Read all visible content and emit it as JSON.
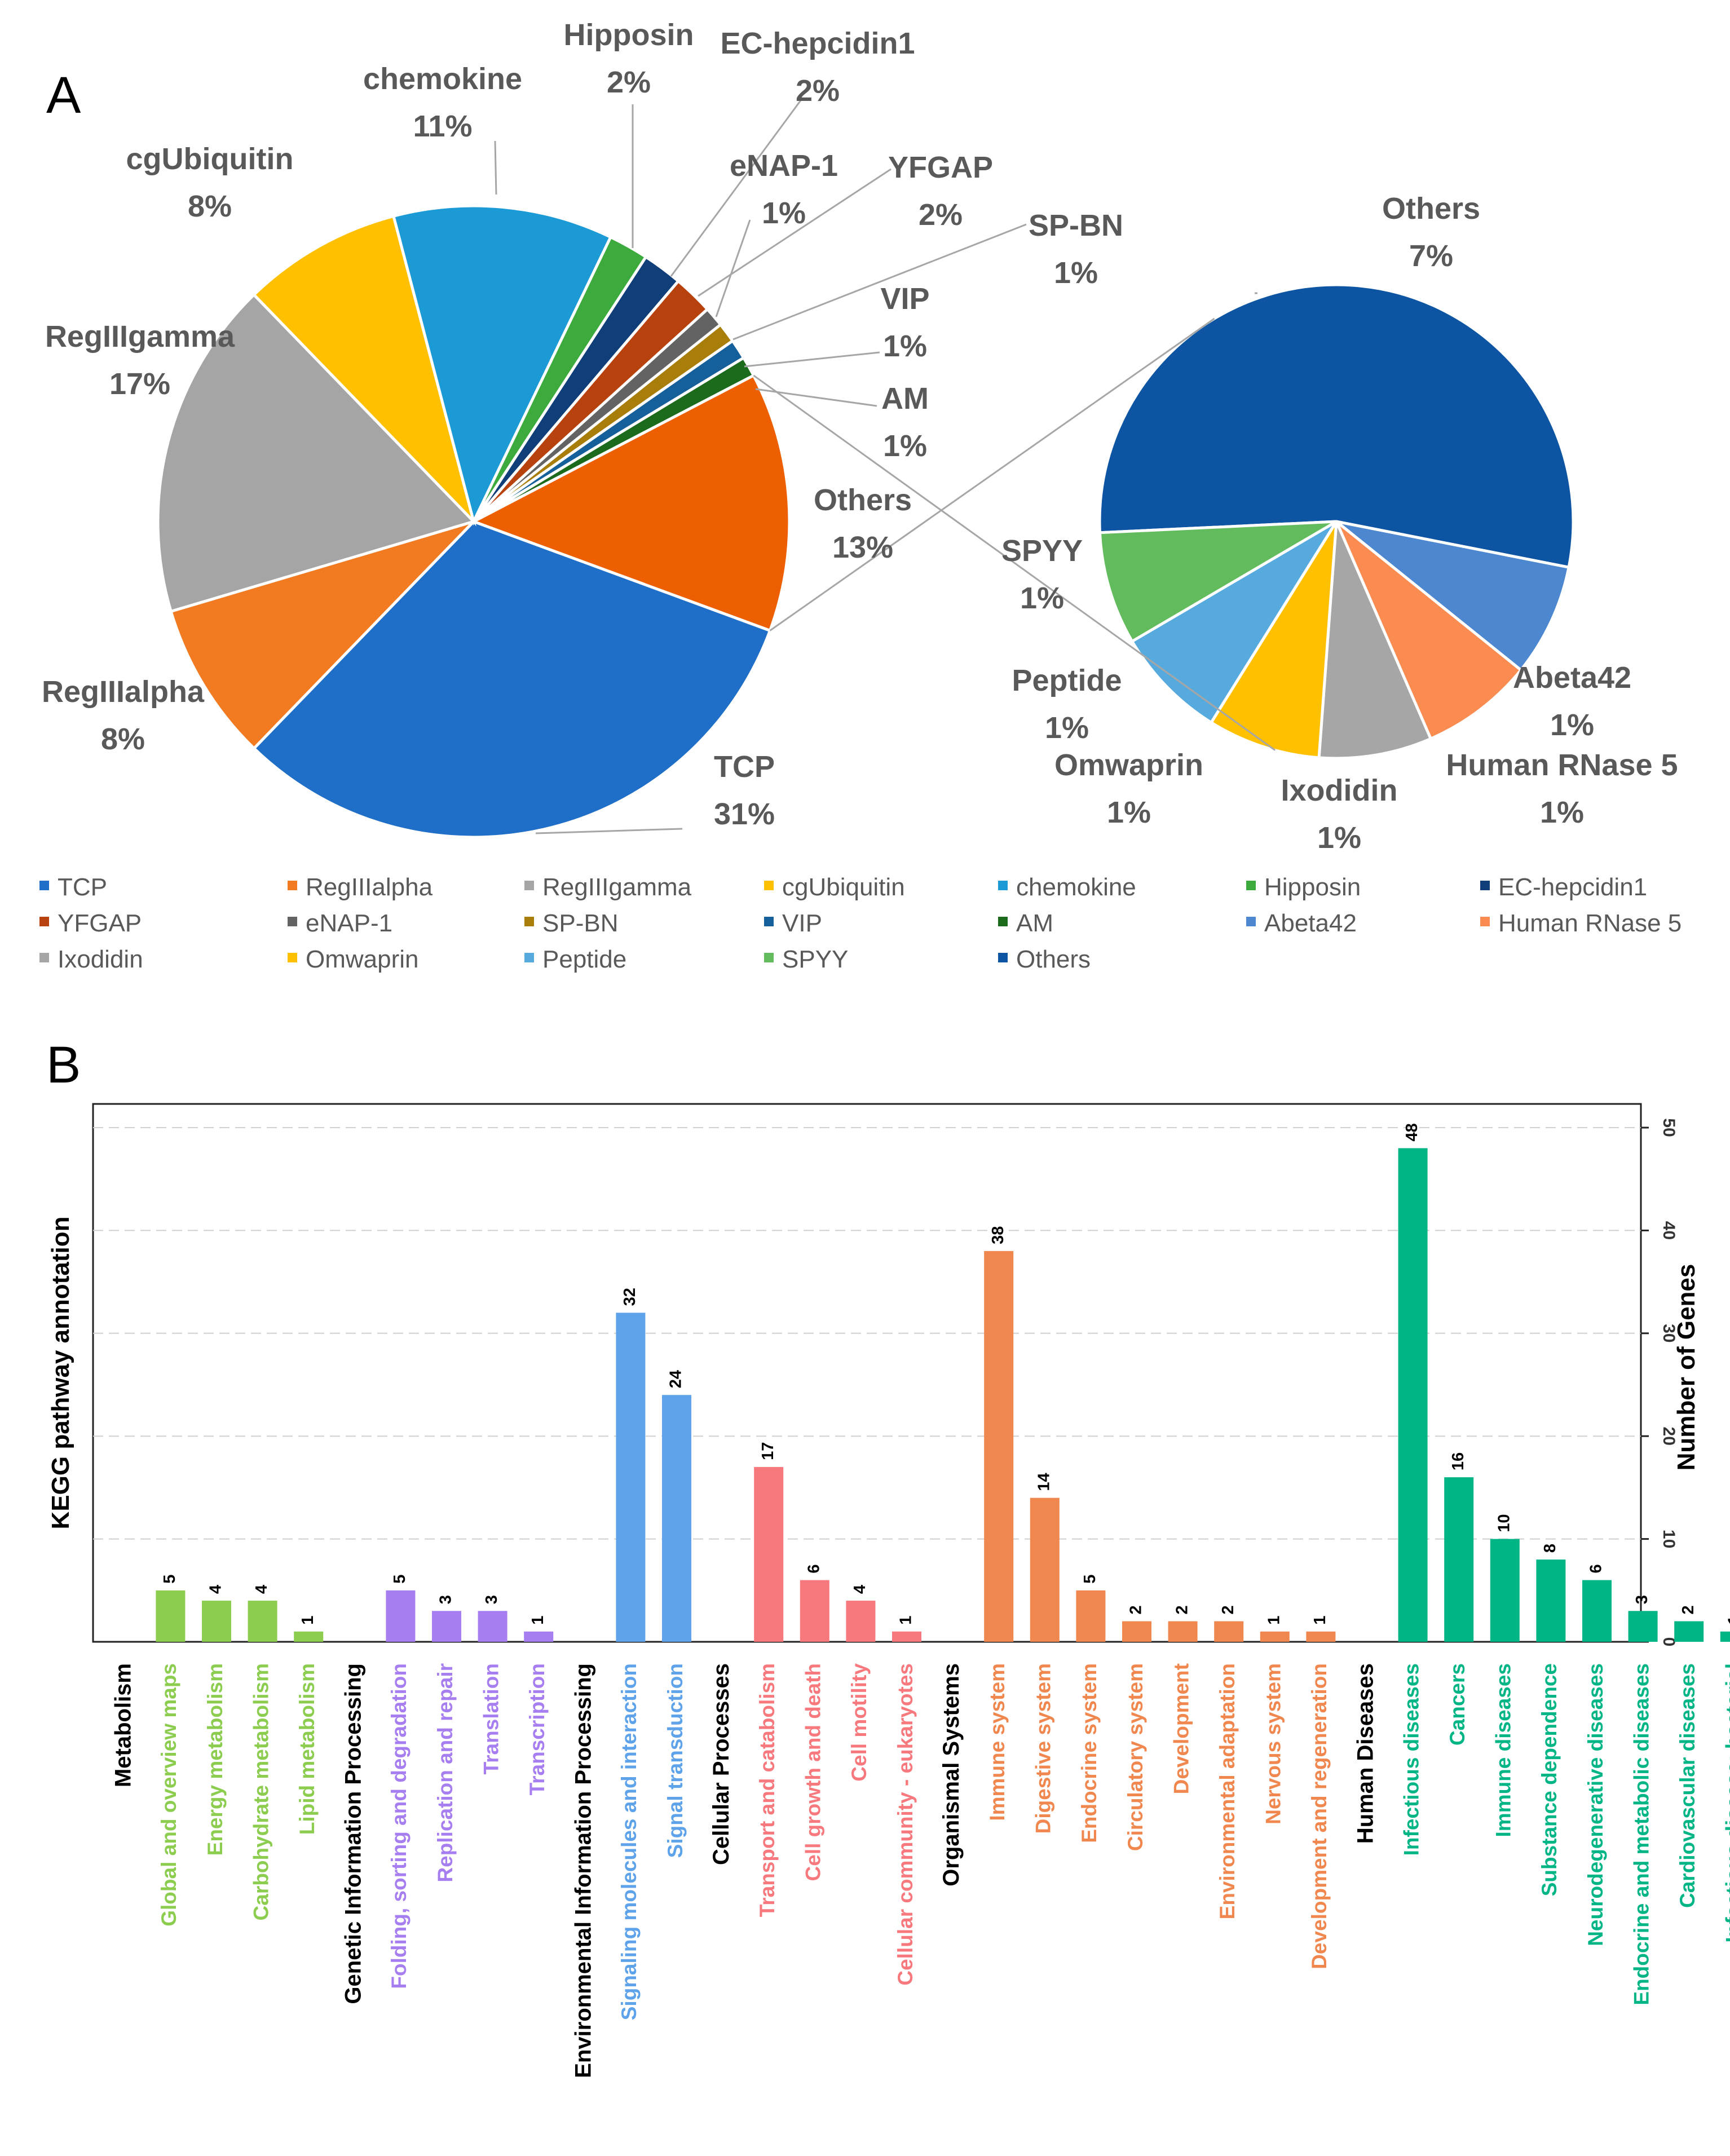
{
  "chart_data": [
    {
      "panel": "A",
      "type": "pie",
      "subtype": "pie-of-pie",
      "slices": [
        {
          "name": "TCP",
          "value": 31,
          "label": "31%",
          "color": "#1f6fc8"
        },
        {
          "name": "RegIIIalpha",
          "value": 8,
          "label": "8%",
          "color": "#f27a21"
        },
        {
          "name": "RegIIIgamma",
          "value": 17,
          "label": "17%",
          "color": "#a5a5a5"
        },
        {
          "name": "cgUbiquitin",
          "value": 8,
          "label": "8%",
          "color": "#ffc000"
        },
        {
          "name": "chemokine",
          "value": 11,
          "label": "11%",
          "color": "#1b9ad6"
        },
        {
          "name": "Hipposin",
          "value": 2,
          "label": "2%",
          "color": "#3daa3d"
        },
        {
          "name": "EC-hepcidin1",
          "value": 2,
          "label": "2%",
          "color": "#0f3e78"
        },
        {
          "name": "YFGAP",
          "value": 2,
          "label": "2%",
          "color": "#b8420e"
        },
        {
          "name": "eNAP-1",
          "value": 1,
          "label": "1%",
          "color": "#636363"
        },
        {
          "name": "SP-BN",
          "value": 1,
          "label": "1%",
          "color": "#a87d0a"
        },
        {
          "name": "VIP",
          "value": 1,
          "label": "1%",
          "color": "#15609a"
        },
        {
          "name": "AM",
          "value": 1,
          "label": "1%",
          "color": "#1c6b1c"
        },
        {
          "name": "Others",
          "value": 13,
          "label": "13%",
          "color": "#ed5f00"
        }
      ],
      "secondary_slices": [
        {
          "name": "Others",
          "value": 7,
          "label": "7%",
          "color": "#0d55a3"
        },
        {
          "name": "Abeta42",
          "value": 1,
          "label": "1%",
          "color": "#4c87cf"
        },
        {
          "name": "Human RNase 5",
          "value": 1,
          "label": "1%",
          "color": "#fa8c52"
        },
        {
          "name": "Ixodidin",
          "value": 1,
          "label": "1%",
          "color": "#a6a6a6"
        },
        {
          "name": "Omwaprin",
          "value": 1,
          "label": "1%",
          "color": "#ffc000"
        },
        {
          "name": "Peptide",
          "value": 1,
          "label": "1%",
          "color": "#57aade"
        },
        {
          "name": "SPYY",
          "value": 1,
          "label": "1%",
          "color": "#62bb5d"
        }
      ],
      "legend": [
        {
          "name": "TCP",
          "color": "#1f6fc8"
        },
        {
          "name": "RegIIIalpha",
          "color": "#f27a21"
        },
        {
          "name": "RegIIIgamma",
          "color": "#a5a5a5"
        },
        {
          "name": "cgUbiquitin",
          "color": "#ffc000"
        },
        {
          "name": "chemokine",
          "color": "#1b9ad6"
        },
        {
          "name": "Hipposin",
          "color": "#3daa3d"
        },
        {
          "name": "EC-hepcidin1",
          "color": "#0f3e78"
        },
        {
          "name": "YFGAP",
          "color": "#b8420e"
        },
        {
          "name": "eNAP-1",
          "color": "#636363"
        },
        {
          "name": "SP-BN",
          "color": "#a87d0a"
        },
        {
          "name": "VIP",
          "color": "#15609a"
        },
        {
          "name": "AM",
          "color": "#1c6b1c"
        },
        {
          "name": "Abeta42",
          "color": "#4c87cf"
        },
        {
          "name": "Human RNase 5",
          "color": "#fa8c52"
        },
        {
          "name": "Ixodidin",
          "color": "#a6a6a6"
        },
        {
          "name": "Omwaprin",
          "color": "#ffc000"
        },
        {
          "name": "Peptide",
          "color": "#57aade"
        },
        {
          "name": "SPYY",
          "color": "#62bb5d"
        },
        {
          "name": "Others",
          "color": "#0d55a3"
        }
      ]
    },
    {
      "panel": "B",
      "type": "bar",
      "xlabel": "KEGG pathway annotation",
      "ylabel": "Number of Genes",
      "ylim": [
        0,
        50
      ],
      "yticks": [
        0,
        10,
        20,
        30,
        40,
        50
      ],
      "grid": true,
      "groups": [
        {
          "name": "Metabolism",
          "color": "#8ccd4f",
          "items": [
            {
              "name": "Global and overview maps",
              "value": 5
            },
            {
              "name": "Energy metabolism",
              "value": 4
            },
            {
              "name": "Carbohydrate metabolism",
              "value": 4
            },
            {
              "name": "Lipid metabolism",
              "value": 1
            }
          ]
        },
        {
          "name": "Genetic Information Processing",
          "color": "#a77ef0",
          "items": [
            {
              "name": "Folding, sorting and degradation",
              "value": 5
            },
            {
              "name": "Replication and repair",
              "value": 3
            },
            {
              "name": "Translation",
              "value": 3
            },
            {
              "name": "Transcription",
              "value": 1
            }
          ]
        },
        {
          "name": "Environmental Information Processing",
          "color": "#5ea3ea",
          "items": [
            {
              "name": "Signaling molecules and interaction",
              "value": 32
            },
            {
              "name": "Signal transduction",
              "value": 24
            }
          ]
        },
        {
          "name": "Cellular Processes",
          "color": "#f7797e",
          "items": [
            {
              "name": "Transport and catabolism",
              "value": 17
            },
            {
              "name": "Cell growth and death",
              "value": 6
            },
            {
              "name": "Cell motility",
              "value": 4
            },
            {
              "name": "Cellular community - eukaryotes",
              "value": 1
            }
          ]
        },
        {
          "name": "Organismal Systems",
          "color": "#f0874f",
          "items": [
            {
              "name": "Immune system",
              "value": 38
            },
            {
              "name": "Digestive system",
              "value": 14
            },
            {
              "name": "Endocrine system",
              "value": 5
            },
            {
              "name": "Circulatory system",
              "value": 2
            },
            {
              "name": "Development",
              "value": 2
            },
            {
              "name": "Environmental adaptation",
              "value": 2
            },
            {
              "name": "Nervous system",
              "value": 1
            },
            {
              "name": "Development and regeneration",
              "value": 1
            }
          ]
        },
        {
          "name": "Human Diseases",
          "color": "#00b585",
          "items": [
            {
              "name": "Infectious diseases",
              "value": 48
            },
            {
              "name": "Cancers",
              "value": 16
            },
            {
              "name": "Immune diseases",
              "value": 10
            },
            {
              "name": "Substance dependence",
              "value": 8
            },
            {
              "name": "Neurodegenerative diseases",
              "value": 6
            },
            {
              "name": "Endocrine and metabolic diseases",
              "value": 3
            },
            {
              "name": "Cardiovascular diseases",
              "value": 2
            },
            {
              "name": "Infectious disease: bacterial",
              "value": 1
            }
          ]
        }
      ]
    }
  ],
  "panels": {
    "a": "A",
    "b": "B"
  }
}
